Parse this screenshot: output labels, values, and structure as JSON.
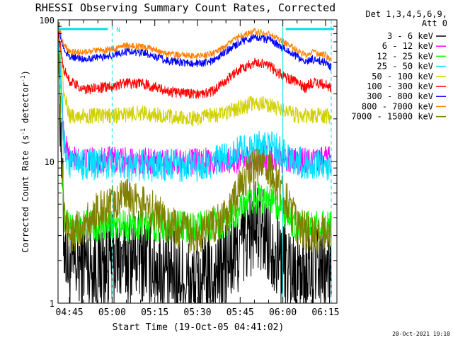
{
  "chart_data": {
    "type": "line",
    "title": "RHESSI Observing Summary Count Rates, Corrected",
    "xlabel": "Start Time (19-Oct-05 04:41:02)",
    "ylabel_main": "Corrected Count Rate (s",
    "ylabel_sup1": "-1",
    "ylabel_mid": " detector",
    "ylabel_sup2": "-1",
    "ylabel_end": ")",
    "y_scale": "log",
    "ylim": [
      1,
      100
    ],
    "xlim": [
      "04:41",
      "06:19"
    ],
    "x_tick_labels": [
      "04:45",
      "05:00",
      "05:15",
      "05:30",
      "05:45",
      "06:00",
      "06:15"
    ],
    "y_tick_labels": [
      "1",
      "10",
      "100"
    ],
    "legend_header": [
      "Det 1,3,4,5,6,9,",
      "Att 0"
    ],
    "legend_position": "right",
    "timestamp": "20-Oct-2021 19:10",
    "flag_label": "N",
    "flag_segment": [
      "04:41",
      "05:00"
    ],
    "flag_segment_2": [
      "06:01",
      "06:18"
    ],
    "night_start": "05:00",
    "night_end": "06:17",
    "saa_start": "06:00",
    "colors": {
      "axis": "#000000",
      "flag": "#00e0e0",
      "night_line": "#00e0e0",
      "saa_line": "#00e0e0"
    },
    "series": [
      {
        "name": "3 - 6 keV",
        "color": "#000000",
        "noise": 0.35,
        "points": [
          [
            "04:41",
            85
          ],
          [
            "04:43",
            3
          ],
          [
            "04:45",
            1.7
          ],
          [
            "04:50",
            2.0
          ],
          [
            "04:55",
            1.8
          ],
          [
            "05:00",
            2.0
          ],
          [
            "05:10",
            2.2
          ],
          [
            "05:20",
            1.6
          ],
          [
            "05:30",
            1.3
          ],
          [
            "05:40",
            1.8
          ],
          [
            "05:45",
            2.5
          ],
          [
            "05:50",
            3.5
          ],
          [
            "05:55",
            3.0
          ],
          [
            "06:00",
            2.0
          ],
          [
            "06:05",
            1.6
          ],
          [
            "06:10",
            1.7
          ],
          [
            "06:15",
            1.7
          ],
          [
            "06:17",
            1.7
          ]
        ]
      },
      {
        "name": "6 - 12 keV",
        "color": "#ff00ff",
        "noise": 0.1,
        "points": [
          [
            "04:41",
            90
          ],
          [
            "04:43",
            15
          ],
          [
            "04:45",
            10.5
          ],
          [
            "04:50",
            10.2
          ],
          [
            "05:00",
            10.3
          ],
          [
            "05:15",
            10.0
          ],
          [
            "05:30",
            10.0
          ],
          [
            "05:45",
            10.2
          ],
          [
            "05:55",
            10.5
          ],
          [
            "06:00",
            10.3
          ],
          [
            "06:05",
            10.0
          ],
          [
            "06:10",
            10.3
          ],
          [
            "06:15",
            10.3
          ],
          [
            "06:17",
            10.3
          ]
        ]
      },
      {
        "name": "12 - 25 keV",
        "color": "#00ff00",
        "noise": 0.12,
        "points": [
          [
            "04:41",
            80
          ],
          [
            "04:43",
            4
          ],
          [
            "04:45",
            3.5
          ],
          [
            "05:00",
            3.5
          ],
          [
            "05:15",
            3.5
          ],
          [
            "05:30",
            3.5
          ],
          [
            "05:40",
            3.7
          ],
          [
            "05:45",
            4.5
          ],
          [
            "05:50",
            5.5
          ],
          [
            "05:55",
            5.5
          ],
          [
            "06:00",
            4.5
          ],
          [
            "06:05",
            3.5
          ],
          [
            "06:10",
            3.5
          ],
          [
            "06:15",
            3.5
          ],
          [
            "06:17",
            3.5
          ]
        ]
      },
      {
        "name": "25 - 50 keV",
        "color": "#00e0ff",
        "noise": 0.12,
        "points": [
          [
            "04:41",
            90
          ],
          [
            "04:43",
            14
          ],
          [
            "04:45",
            9.5
          ],
          [
            "05:00",
            9.5
          ],
          [
            "05:15",
            9.3
          ],
          [
            "05:30",
            9.3
          ],
          [
            "05:40",
            10.5
          ],
          [
            "05:45",
            12
          ],
          [
            "05:55",
            13
          ],
          [
            "06:00",
            11.5
          ],
          [
            "06:05",
            10
          ],
          [
            "06:10",
            9.5
          ],
          [
            "06:15",
            9.5
          ],
          [
            "06:17",
            9.5
          ]
        ]
      },
      {
        "name": "50 - 100 keV",
        "color": "#d0d000",
        "noise": 0.06,
        "points": [
          [
            "04:41",
            85
          ],
          [
            "04:43",
            30
          ],
          [
            "04:45",
            21
          ],
          [
            "04:50",
            21
          ],
          [
            "05:00",
            21
          ],
          [
            "05:10",
            22
          ],
          [
            "05:15",
            21.5
          ],
          [
            "05:25",
            20
          ],
          [
            "05:30",
            20
          ],
          [
            "05:40",
            22
          ],
          [
            "05:45",
            24
          ],
          [
            "05:50",
            26
          ],
          [
            "05:55",
            25
          ],
          [
            "06:00",
            23
          ],
          [
            "06:05",
            21
          ],
          [
            "06:10",
            21
          ],
          [
            "06:15",
            21
          ],
          [
            "06:17",
            21
          ]
        ]
      },
      {
        "name": "100 - 300 keV",
        "color": "#ff0000",
        "noise": 0.04,
        "points": [
          [
            "04:41",
            80
          ],
          [
            "04:43",
            45
          ],
          [
            "04:45",
            37
          ],
          [
            "04:50",
            32
          ],
          [
            "05:00",
            34
          ],
          [
            "05:05",
            36
          ],
          [
            "05:12",
            35
          ],
          [
            "05:20",
            31
          ],
          [
            "05:30",
            30
          ],
          [
            "05:35",
            31
          ],
          [
            "05:40",
            37
          ],
          [
            "05:45",
            45
          ],
          [
            "05:50",
            50
          ],
          [
            "05:55",
            48
          ],
          [
            "06:00",
            40
          ],
          [
            "06:05",
            37
          ],
          [
            "06:08",
            33
          ],
          [
            "06:10",
            36
          ],
          [
            "06:15",
            35
          ],
          [
            "06:17",
            33
          ]
        ]
      },
      {
        "name": "300 - 800 keV",
        "color": "#0000ff",
        "noise": 0.03,
        "points": [
          [
            "04:41",
            90
          ],
          [
            "04:43",
            62
          ],
          [
            "04:45",
            55
          ],
          [
            "04:50",
            53
          ],
          [
            "05:00",
            56
          ],
          [
            "05:05",
            60
          ],
          [
            "05:12",
            58
          ],
          [
            "05:20",
            51
          ],
          [
            "05:30",
            49
          ],
          [
            "05:35",
            51
          ],
          [
            "05:40",
            60
          ],
          [
            "05:45",
            70
          ],
          [
            "05:50",
            75
          ],
          [
            "05:55",
            73
          ],
          [
            "06:00",
            63
          ],
          [
            "06:05",
            55
          ],
          [
            "06:08",
            50
          ],
          [
            "06:10",
            53
          ],
          [
            "06:15",
            50
          ],
          [
            "06:17",
            46
          ]
        ]
      },
      {
        "name": "800 - 7000 keV",
        "color": "#ff8000",
        "noise": 0.025,
        "points": [
          [
            "04:41",
            92
          ],
          [
            "04:43",
            68
          ],
          [
            "04:45",
            60
          ],
          [
            "04:50",
            59
          ],
          [
            "05:00",
            62
          ],
          [
            "05:05",
            66
          ],
          [
            "05:12",
            64
          ],
          [
            "05:20",
            57
          ],
          [
            "05:30",
            55
          ],
          [
            "05:35",
            57
          ],
          [
            "05:40",
            66
          ],
          [
            "05:45",
            77
          ],
          [
            "05:50",
            83
          ],
          [
            "05:55",
            80
          ],
          [
            "06:00",
            70
          ],
          [
            "06:05",
            61
          ],
          [
            "06:08",
            56
          ],
          [
            "06:10",
            59
          ],
          [
            "06:15",
            56
          ],
          [
            "06:17",
            52
          ]
        ]
      },
      {
        "name": "7000 - 15000 keV",
        "color": "#808000",
        "noise": 0.15,
        "points": [
          [
            "04:41",
            70
          ],
          [
            "04:43",
            4
          ],
          [
            "04:45",
            3.0
          ],
          [
            "04:50",
            3.5
          ],
          [
            "04:55",
            4.5
          ],
          [
            "05:00",
            5.0
          ],
          [
            "05:05",
            5.5
          ],
          [
            "05:10",
            5.0
          ],
          [
            "05:15",
            4.5
          ],
          [
            "05:20",
            3.5
          ],
          [
            "05:30",
            3.0
          ],
          [
            "05:40",
            4.0
          ],
          [
            "05:45",
            6.5
          ],
          [
            "05:50",
            9
          ],
          [
            "05:55",
            9
          ],
          [
            "06:00",
            6
          ],
          [
            "06:05",
            3.5
          ],
          [
            "06:10",
            3.0
          ],
          [
            "06:15",
            3.0
          ],
          [
            "06:17",
            3.0
          ]
        ]
      }
    ]
  }
}
